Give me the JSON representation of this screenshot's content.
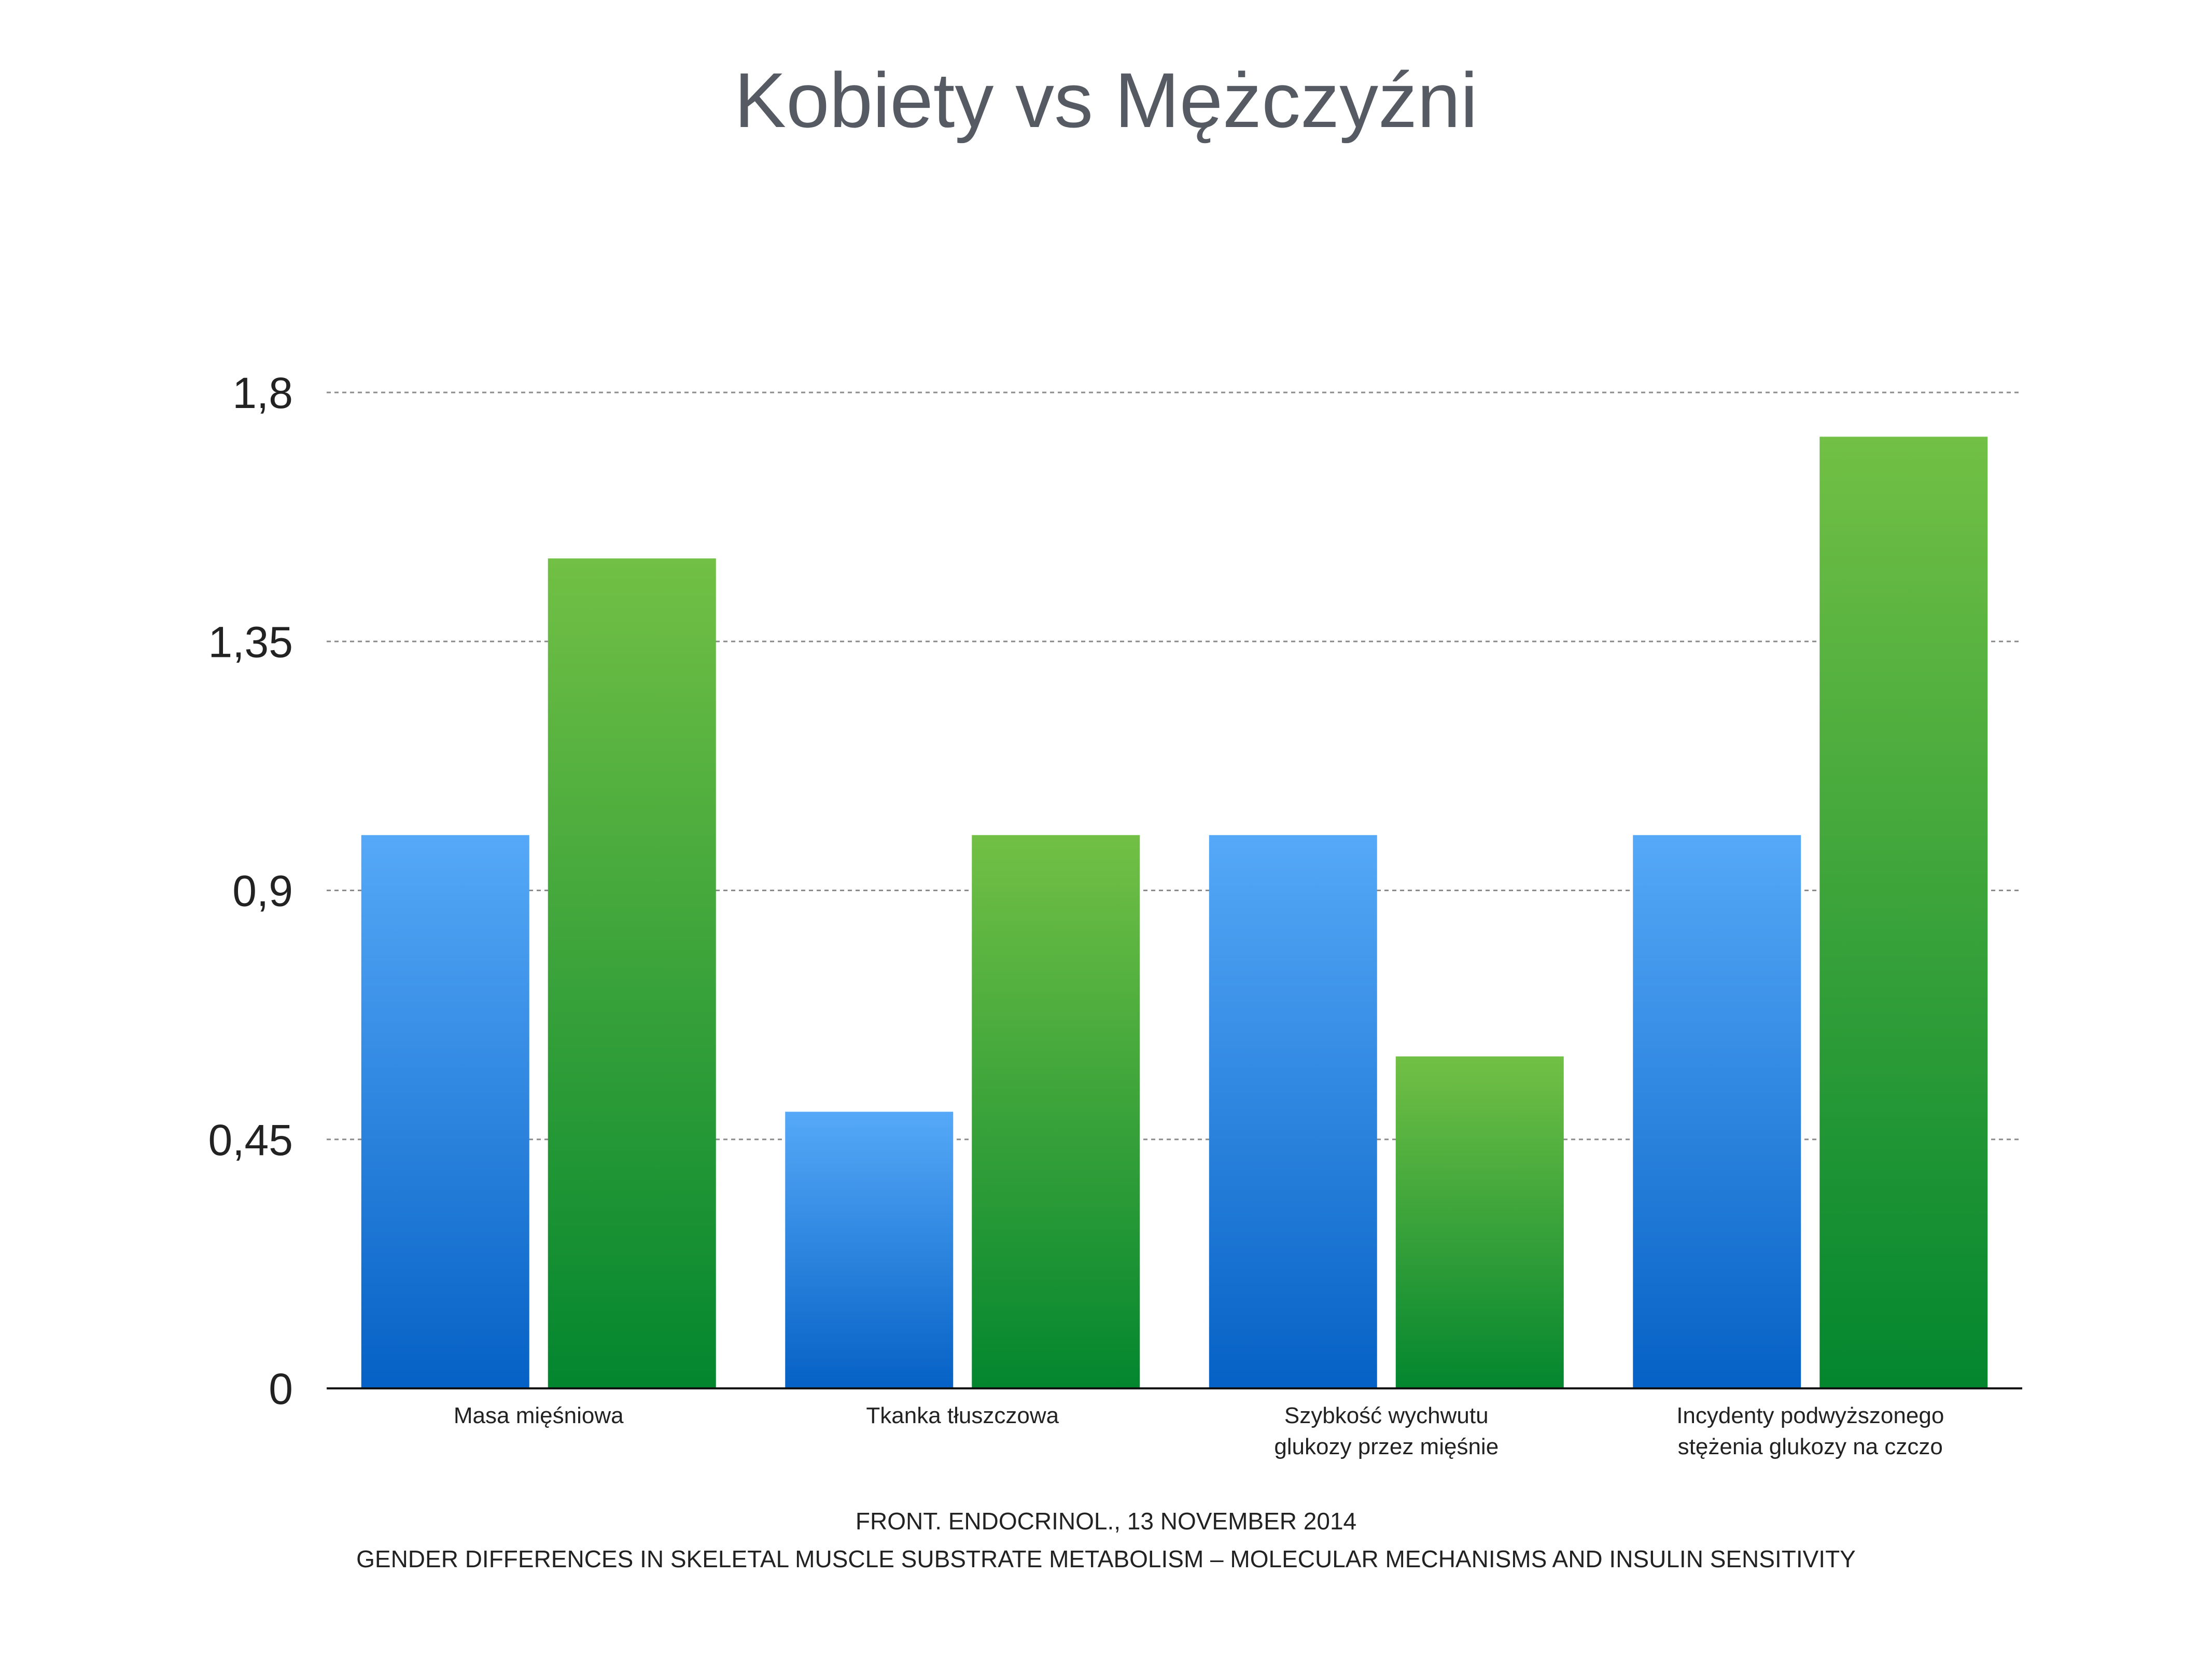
{
  "chart_data": {
    "type": "bar",
    "title": "Kobiety vs Mężczyźni",
    "xlabel": "",
    "ylabel": "",
    "categories": [
      [
        "Masa mięśniowa"
      ],
      [
        "Tkanka tłuszczowa"
      ],
      [
        "Szybkość wychwutu",
        "glukozy przez mięśnie"
      ],
      [
        "Incydenty podwyższonego",
        "stężenia glukozy na czczo"
      ]
    ],
    "series": [
      {
        "values": [
          1.0,
          0.5,
          1.0,
          1.0
        ],
        "color_top": "#56a9f8",
        "color_bottom": "#0561c5"
      },
      {
        "values": [
          1.5,
          1.0,
          0.6,
          1.72
        ],
        "color_top": "#72c045",
        "color_bottom": "#03862f"
      }
    ],
    "ylim": [
      0,
      1.8
    ],
    "yticks": [
      0,
      0.45,
      0.9,
      1.35,
      1.8
    ],
    "ytick_labels": [
      "0",
      "0,45",
      "0,9",
      "1,35",
      "1,8"
    ],
    "grid": true,
    "legend": "none"
  },
  "source": {
    "line1": "FRONT. ENDOCRINOL., 13 NOVEMBER 2014",
    "line2": "GENDER DIFFERENCES IN SKELETAL MUSCLE SUBSTRATE METABOLISM – MOLECULAR MECHANISMS AND INSULIN SENSITIVITY"
  }
}
